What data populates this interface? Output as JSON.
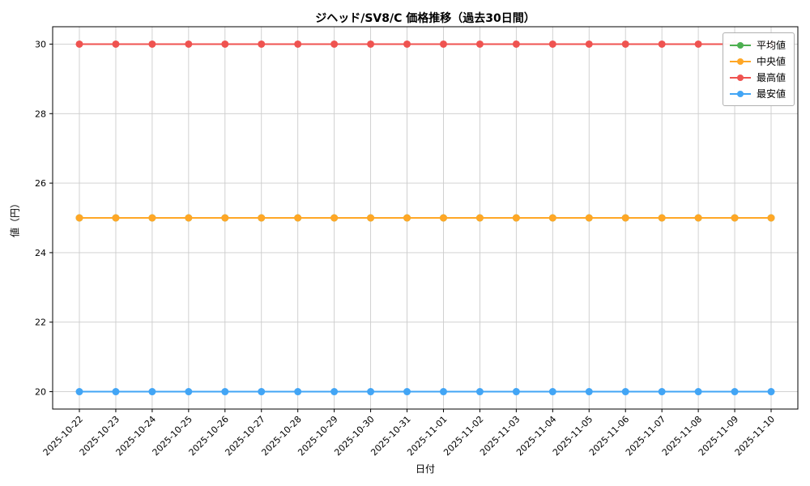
{
  "chart_data": {
    "type": "line",
    "title": "ジヘッド/SV8/C 価格推移（過去30日間）",
    "xlabel": "日付",
    "ylabel": "値（円）",
    "grid": true,
    "legend_position": "upper right",
    "ylim": [
      19.5,
      30.5
    ],
    "yticks": [
      20,
      22,
      24,
      26,
      28,
      30
    ],
    "x": [
      "2025-10-22",
      "2025-10-23",
      "2025-10-24",
      "2025-10-25",
      "2025-10-26",
      "2025-10-27",
      "2025-10-28",
      "2025-10-29",
      "2025-10-30",
      "2025-10-31",
      "2025-11-01",
      "2025-11-02",
      "2025-11-03",
      "2025-11-04",
      "2025-11-05",
      "2025-11-06",
      "2025-11-07",
      "2025-11-08",
      "2025-11-09",
      "2025-11-10"
    ],
    "series": [
      {
        "key": "mean",
        "name": "平均値",
        "color": "#4caf50",
        "values": [
          25,
          25,
          25,
          25,
          25,
          25,
          25,
          25,
          25,
          25,
          25,
          25,
          25,
          25,
          25,
          25,
          25,
          25,
          25,
          25
        ]
      },
      {
        "key": "median",
        "name": "中央値",
        "color": "#ffa726",
        "values": [
          25,
          25,
          25,
          25,
          25,
          25,
          25,
          25,
          25,
          25,
          25,
          25,
          25,
          25,
          25,
          25,
          25,
          25,
          25,
          25
        ]
      },
      {
        "key": "max",
        "name": "最高値",
        "color": "#ef5350",
        "values": [
          30,
          30,
          30,
          30,
          30,
          30,
          30,
          30,
          30,
          30,
          30,
          30,
          30,
          30,
          30,
          30,
          30,
          30,
          30,
          30
        ]
      },
      {
        "key": "min",
        "name": "最安値",
        "color": "#42a5f5",
        "values": [
          20,
          20,
          20,
          20,
          20,
          20,
          20,
          20,
          20,
          20,
          20,
          20,
          20,
          20,
          20,
          20,
          20,
          20,
          20,
          20
        ]
      }
    ]
  }
}
